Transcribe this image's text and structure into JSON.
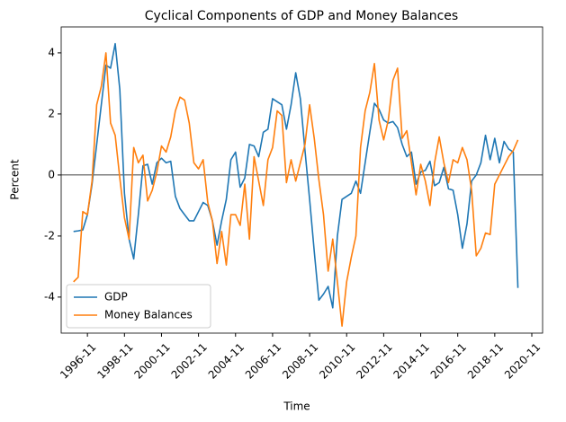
{
  "chart_data": {
    "type": "line",
    "title": "Cyclical Components of GDP and Money Balances",
    "xlabel": "Time",
    "ylabel": "Percent",
    "x": [
      "1996-02",
      "1996-05",
      "1996-08",
      "1996-11",
      "1997-02",
      "1997-05",
      "1997-08",
      "1997-11",
      "1998-02",
      "1998-05",
      "1998-08",
      "1998-11",
      "1999-02",
      "1999-05",
      "1999-08",
      "1999-11",
      "2000-02",
      "2000-05",
      "2000-08",
      "2000-11",
      "2001-02",
      "2001-05",
      "2001-08",
      "2001-11",
      "2002-02",
      "2002-05",
      "2002-08",
      "2002-11",
      "2003-02",
      "2003-05",
      "2003-08",
      "2003-11",
      "2004-02",
      "2004-05",
      "2004-08",
      "2004-11",
      "2005-02",
      "2005-05",
      "2005-08",
      "2005-11",
      "2006-02",
      "2006-05",
      "2006-08",
      "2006-11",
      "2007-02",
      "2007-05",
      "2007-08",
      "2007-11",
      "2008-02",
      "2008-05",
      "2008-08",
      "2008-11",
      "2009-02",
      "2009-05",
      "2009-08",
      "2009-11",
      "2010-02",
      "2010-05",
      "2010-08",
      "2010-11",
      "2011-02",
      "2011-05",
      "2011-08",
      "2011-11",
      "2012-02",
      "2012-05",
      "2012-08",
      "2012-11",
      "2013-02",
      "2013-05",
      "2013-08",
      "2013-11",
      "2014-02",
      "2014-05",
      "2014-08",
      "2014-11",
      "2015-02",
      "2015-05",
      "2015-08",
      "2015-11",
      "2016-02",
      "2016-05",
      "2016-08",
      "2016-11",
      "2017-02",
      "2017-05",
      "2017-08",
      "2017-11",
      "2018-02",
      "2018-05",
      "2018-08",
      "2018-11",
      "2019-02",
      "2019-05",
      "2019-08",
      "2019-11",
      "2020-02"
    ],
    "series": [
      {
        "name": "GDP",
        "color": "#1f77b4",
        "values": [
          -1.85,
          -1.83,
          -1.8,
          -1.3,
          -0.3,
          1.0,
          2.3,
          3.6,
          3.5,
          4.3,
          2.8,
          -0.6,
          -2.1,
          -2.75,
          -1.3,
          0.3,
          0.35,
          -0.3,
          0.4,
          0.55,
          0.4,
          0.45,
          -0.7,
          -1.1,
          -1.3,
          -1.5,
          -1.5,
          -1.2,
          -0.9,
          -1.0,
          -1.5,
          -2.3,
          -1.5,
          -0.8,
          0.5,
          0.75,
          -0.4,
          -0.1,
          1.0,
          0.95,
          0.6,
          1.4,
          1.5,
          2.5,
          2.4,
          2.3,
          1.5,
          2.3,
          3.35,
          2.5,
          0.8,
          -0.8,
          -2.5,
          -4.1,
          -3.9,
          -3.65,
          -4.35,
          -2.0,
          -0.8,
          -0.7,
          -0.6,
          -0.2,
          -0.6,
          0.4,
          1.4,
          2.35,
          2.15,
          1.8,
          1.7,
          1.75,
          1.55,
          1.0,
          0.6,
          0.75,
          -0.3,
          0.1,
          0.15,
          0.45,
          -0.35,
          -0.25,
          0.25,
          -0.45,
          -0.5,
          -1.3,
          -2.4,
          -1.6,
          -0.2,
          0.0,
          0.4,
          1.3,
          0.5,
          1.2,
          0.4,
          1.1,
          0.85,
          0.75,
          -3.7
        ]
      },
      {
        "name": "Money Balances",
        "color": "#ff7f0e",
        "values": [
          -3.5,
          -3.35,
          -1.2,
          -1.3,
          -0.2,
          2.3,
          2.9,
          4.0,
          1.7,
          1.3,
          -0.1,
          -1.4,
          -2.1,
          0.9,
          0.4,
          0.65,
          -0.85,
          -0.5,
          0.1,
          0.95,
          0.75,
          1.25,
          2.1,
          2.55,
          2.45,
          1.7,
          0.4,
          0.2,
          0.5,
          -0.9,
          -1.5,
          -2.9,
          -1.85,
          -2.95,
          -1.3,
          -1.3,
          -1.65,
          -0.3,
          -2.1,
          0.6,
          -0.2,
          -1.0,
          0.5,
          0.9,
          2.1,
          1.95,
          -0.25,
          0.5,
          -0.2,
          0.4,
          1.0,
          2.3,
          1.2,
          -0.15,
          -1.3,
          -3.15,
          -2.1,
          -3.5,
          -4.95,
          -3.5,
          -2.7,
          -2.0,
          0.9,
          2.1,
          2.7,
          3.65,
          1.8,
          1.15,
          1.8,
          3.1,
          3.5,
          1.2,
          1.45,
          0.4,
          -0.65,
          0.35,
          -0.2,
          -1.0,
          0.4,
          1.25,
          0.4,
          -0.25,
          0.5,
          0.4,
          0.9,
          0.5,
          -0.5,
          -2.65,
          -2.4,
          -1.9,
          -1.95,
          -0.3,
          0.0,
          0.3,
          0.6,
          0.8,
          1.15
        ]
      }
    ],
    "xlim": [
      "1995-06",
      "2021-06"
    ],
    "xticks": [
      "1996-11",
      "1998-11",
      "2000-11",
      "2002-11",
      "2004-11",
      "2006-11",
      "2008-11",
      "2010-11",
      "2012-11",
      "2014-11",
      "2016-11",
      "2018-11",
      "2020-11"
    ],
    "ylim": [
      -5.18,
      4.85
    ],
    "yticks": [
      -4,
      -2,
      0,
      2,
      4
    ],
    "reference_line": 0,
    "legend": "lower left"
  }
}
